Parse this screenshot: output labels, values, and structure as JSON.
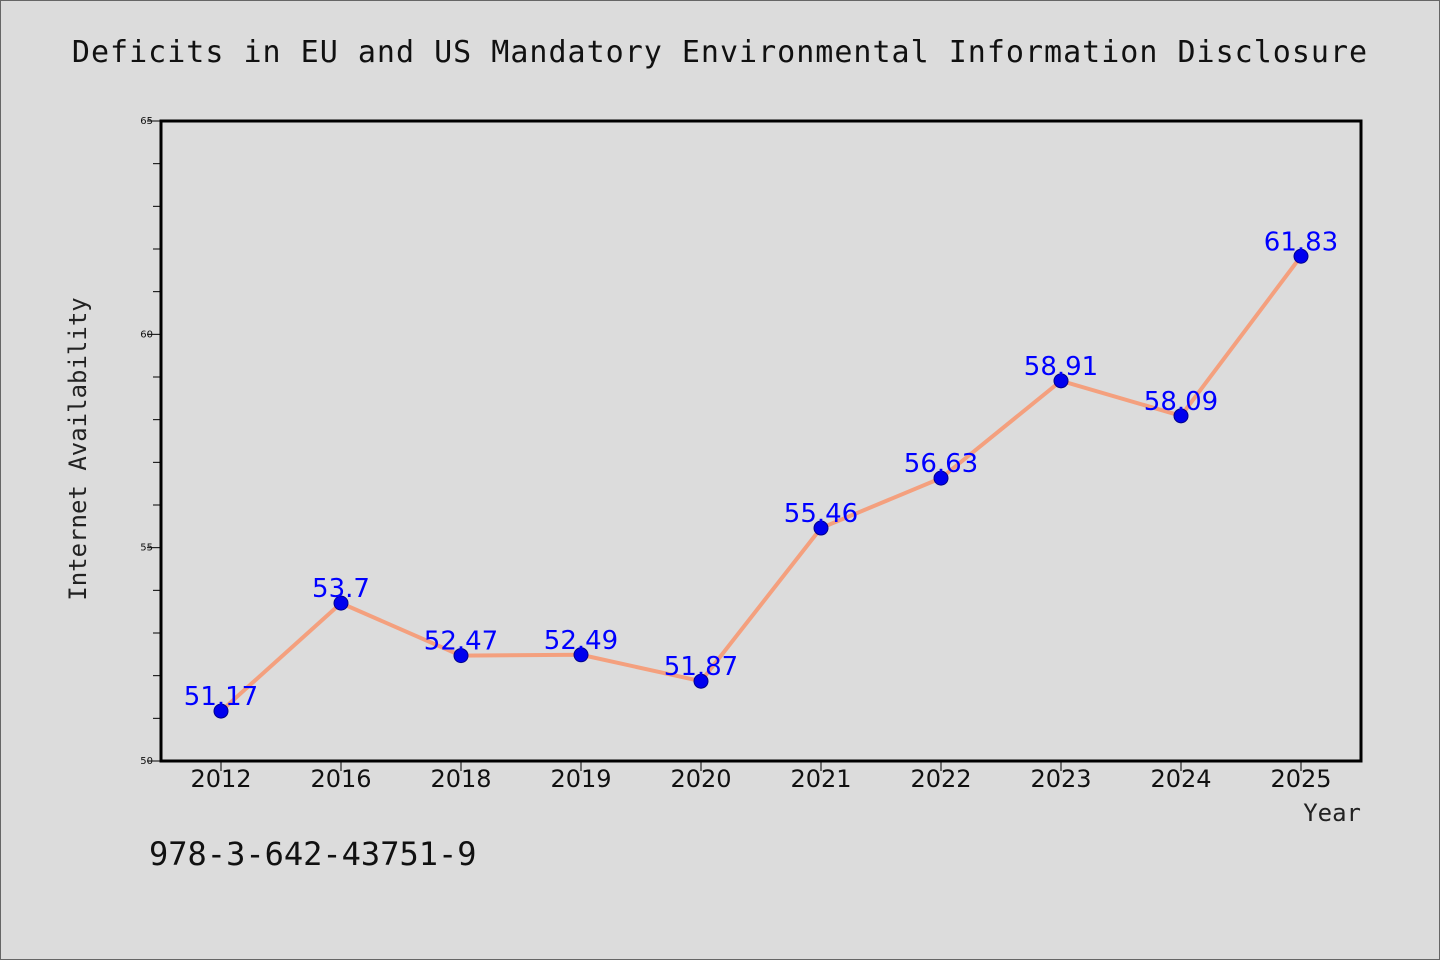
{
  "chart_data": {
    "type": "line",
    "title": "Deficits in EU and US Mandatory Environmental Information Disclosure",
    "xlabel": "Year",
    "ylabel": "Internet Availability",
    "categories": [
      "2012",
      "2016",
      "2018",
      "2019",
      "2020",
      "2021",
      "2022",
      "2023",
      "2024",
      "2025"
    ],
    "series": [
      {
        "values": [
          51.17,
          53.7,
          52.47,
          52.49,
          51.87,
          55.46,
          56.63,
          58.91,
          58.09,
          61.83
        ],
        "labels": [
          "51.17",
          "53.7",
          "52.47",
          "52.49",
          "51.87",
          "55.46",
          "56.63",
          "58.91",
          "58.09",
          "61.83"
        ]
      }
    ],
    "ylim": [
      50,
      65
    ],
    "yticks": [
      "50",
      "55",
      "60",
      "65"
    ],
    "grid": false,
    "colors": {
      "line": "#f4a07e",
      "marker": "#0000ee",
      "label": "#0000ff",
      "axis": "#000000"
    }
  },
  "footer": {
    "isbn": "978-3-642-43751-9"
  }
}
